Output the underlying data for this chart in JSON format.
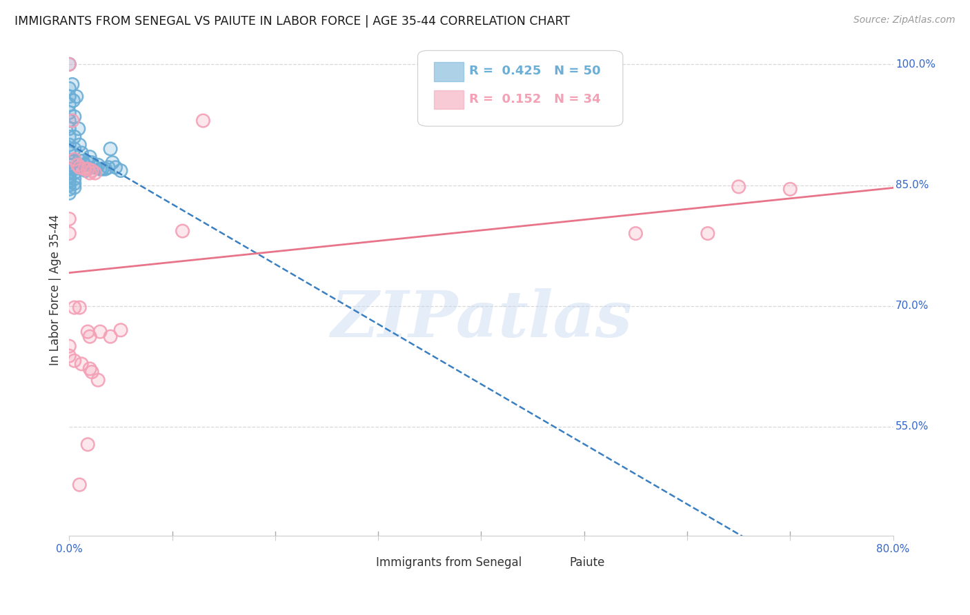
{
  "title": "IMMIGRANTS FROM SENEGAL VS PAIUTE IN LABOR FORCE | AGE 35-44 CORRELATION CHART",
  "source": "Source: ZipAtlas.com",
  "ylabel": "In Labor Force | Age 35-44",
  "xlim": [
    0.0,
    0.8
  ],
  "ylim": [
    0.415,
    1.025
  ],
  "yticks": [
    0.55,
    0.7,
    0.85,
    1.0
  ],
  "ytick_labels": [
    "55.0%",
    "70.0%",
    "85.0%",
    "100.0%"
  ],
  "watermark_text": "ZIPatlas",
  "senegal_color": "#6baed6",
  "paiute_color": "#f4a0b5",
  "senegal_line_color": "#3a7fc1",
  "paiute_line_color": "#e8748a",
  "bg_color": "#ffffff",
  "grid_color": "#d8d8d8",
  "title_color": "#1a1a1a",
  "ylabel_color": "#333333",
  "tick_color": "#3366cc",
  "source_color": "#999999",
  "legend_r1": "0.425",
  "legend_n1": "50",
  "legend_r2": "0.152",
  "legend_n2": "34",
  "senegal_points": [
    [
      0.0,
      1.0
    ],
    [
      0.0,
      0.97
    ],
    [
      0.0,
      0.96
    ],
    [
      0.0,
      0.95
    ],
    [
      0.0,
      0.94
    ],
    [
      0.0,
      0.93
    ],
    [
      0.0,
      0.92
    ],
    [
      0.0,
      0.91
    ],
    [
      0.0,
      0.9
    ],
    [
      0.0,
      0.89
    ],
    [
      0.0,
      0.88
    ],
    [
      0.0,
      0.875
    ],
    [
      0.0,
      0.87
    ],
    [
      0.0,
      0.865
    ],
    [
      0.0,
      0.86
    ],
    [
      0.0,
      0.855
    ],
    [
      0.0,
      0.85
    ],
    [
      0.0,
      0.845
    ],
    [
      0.0,
      0.84
    ],
    [
      0.003,
      0.975
    ],
    [
      0.004,
      0.955
    ],
    [
      0.005,
      0.935
    ],
    [
      0.005,
      0.91
    ],
    [
      0.005,
      0.895
    ],
    [
      0.005,
      0.88
    ],
    [
      0.005,
      0.87
    ],
    [
      0.005,
      0.865
    ],
    [
      0.005,
      0.858
    ],
    [
      0.005,
      0.852
    ],
    [
      0.005,
      0.847
    ],
    [
      0.007,
      0.96
    ],
    [
      0.009,
      0.92
    ],
    [
      0.01,
      0.9
    ],
    [
      0.012,
      0.89
    ],
    [
      0.013,
      0.88
    ],
    [
      0.015,
      0.875
    ],
    [
      0.016,
      0.868
    ],
    [
      0.018,
      0.878
    ],
    [
      0.02,
      0.885
    ],
    [
      0.022,
      0.878
    ],
    [
      0.025,
      0.872
    ],
    [
      0.028,
      0.875
    ],
    [
      0.03,
      0.87
    ],
    [
      0.032,
      0.87
    ],
    [
      0.035,
      0.87
    ],
    [
      0.038,
      0.872
    ],
    [
      0.04,
      0.895
    ],
    [
      0.042,
      0.878
    ],
    [
      0.045,
      0.872
    ],
    [
      0.05,
      0.868
    ]
  ],
  "paiute_points": [
    [
      0.0,
      1.0
    ],
    [
      0.003,
      0.93
    ],
    [
      0.005,
      0.882
    ],
    [
      0.008,
      0.875
    ],
    [
      0.01,
      0.872
    ],
    [
      0.015,
      0.87
    ],
    [
      0.018,
      0.87
    ],
    [
      0.02,
      0.865
    ],
    [
      0.022,
      0.868
    ],
    [
      0.025,
      0.865
    ],
    [
      0.13,
      0.93
    ],
    [
      0.0,
      0.808
    ],
    [
      0.0,
      0.79
    ],
    [
      0.0,
      0.65
    ],
    [
      0.005,
      0.698
    ],
    [
      0.01,
      0.698
    ],
    [
      0.018,
      0.668
    ],
    [
      0.02,
      0.662
    ],
    [
      0.03,
      0.668
    ],
    [
      0.04,
      0.662
    ],
    [
      0.05,
      0.67
    ],
    [
      0.11,
      0.793
    ],
    [
      0.0,
      0.638
    ],
    [
      0.005,
      0.632
    ],
    [
      0.012,
      0.628
    ],
    [
      0.02,
      0.622
    ],
    [
      0.022,
      0.618
    ],
    [
      0.028,
      0.608
    ],
    [
      0.018,
      0.528
    ],
    [
      0.01,
      0.478
    ],
    [
      0.55,
      0.79
    ],
    [
      0.62,
      0.79
    ],
    [
      0.65,
      0.848
    ],
    [
      0.7,
      0.845
    ]
  ]
}
